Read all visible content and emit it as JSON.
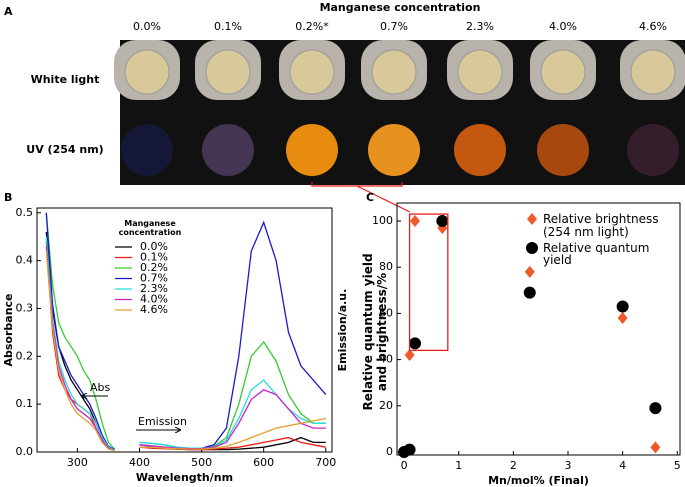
{
  "panel_a": {
    "label": "A",
    "title": "Manganese concentration",
    "concentrations": [
      "0.0%",
      "0.1%",
      "0.2%*",
      "0.7%",
      "2.3%",
      "4.0%",
      "4.6%"
    ],
    "rows": [
      "White light",
      "UV (254 nm)"
    ]
  },
  "chart_data": [
    {
      "type": "line",
      "panel": "B",
      "xlabel": "Wavelength/nm",
      "ylabel": "Absorbance",
      "y2label": "Emission/a.u.",
      "legend_title": "Manganese concentration",
      "annotations": [
        "Abs",
        "Emission"
      ],
      "x": [
        250,
        260,
        270,
        280,
        290,
        300,
        310,
        320,
        330,
        340,
        350,
        360,
        380,
        400,
        420,
        440,
        460,
        480,
        500,
        520,
        540,
        560,
        580,
        600,
        620,
        640,
        660,
        680,
        700
      ],
      "xlim": [
        235,
        710
      ],
      "xticks": [
        300,
        400,
        500,
        600,
        700
      ],
      "ylim": [
        0,
        0.51
      ],
      "yticks": [
        {
          "value": 0,
          "label": "0.0"
        },
        0.1,
        0.2,
        0.3,
        0.4,
        0.5
      ],
      "series": [
        {
          "name": "0.0%",
          "color": "#000000",
          "values": [
            0.46,
            0.3,
            0.22,
            0.18,
            0.15,
            0.13,
            0.11,
            0.09,
            0.06,
            0.03,
            0.01,
            0.005,
            null,
            0.01,
            0.01,
            0.008,
            0.006,
            0.005,
            0.005,
            0.005,
            0.005,
            0.006,
            0.008,
            0.01,
            0.015,
            0.02,
            0.03,
            0.02,
            0.02
          ]
        },
        {
          "name": "0.1%",
          "color": "#e8201a",
          "values": [
            0.44,
            0.25,
            0.16,
            0.13,
            0.11,
            0.1,
            0.09,
            0.08,
            0.05,
            0.02,
            0.008,
            0.004,
            null,
            0.01,
            0.008,
            0.007,
            0.006,
            0.005,
            0.005,
            0.006,
            0.008,
            0.01,
            0.015,
            0.02,
            0.025,
            0.03,
            0.02,
            0.015,
            0.01
          ]
        },
        {
          "name": "0.2%",
          "color": "#33cc33",
          "values": [
            0.5,
            0.35,
            0.27,
            0.24,
            0.22,
            0.2,
            0.17,
            0.15,
            0.11,
            0.06,
            0.02,
            0.006,
            null,
            0.02,
            0.018,
            0.015,
            0.01,
            0.008,
            0.008,
            0.012,
            0.03,
            0.1,
            0.2,
            0.23,
            0.19,
            0.12,
            0.08,
            0.06,
            0.06
          ]
        },
        {
          "name": "0.7%",
          "color": "#1a1acc",
          "values": [
            0.5,
            0.31,
            0.22,
            0.19,
            0.16,
            0.14,
            0.12,
            0.1,
            0.07,
            0.035,
            0.012,
            0.005,
            null,
            0.015,
            0.012,
            0.01,
            0.008,
            0.007,
            0.008,
            0.015,
            0.05,
            0.2,
            0.42,
            0.48,
            0.4,
            0.25,
            0.18,
            0.15,
            0.12
          ]
        },
        {
          "name": "2.3%",
          "color": "#22dddd",
          "values": [
            0.45,
            0.28,
            0.19,
            0.15,
            0.12,
            0.1,
            0.09,
            0.08,
            0.06,
            0.03,
            0.01,
            0.004,
            null,
            0.02,
            0.018,
            0.015,
            0.01,
            0.008,
            0.008,
            0.01,
            0.025,
            0.07,
            0.13,
            0.15,
            0.12,
            0.09,
            0.07,
            0.06,
            0.06
          ]
        },
        {
          "name": "4.0%",
          "color": "#cc22cc",
          "values": [
            0.43,
            0.27,
            0.18,
            0.14,
            0.11,
            0.09,
            0.08,
            0.07,
            0.05,
            0.025,
            0.008,
            0.003,
            null,
            0.015,
            0.013,
            0.01,
            0.008,
            0.007,
            0.007,
            0.01,
            0.02,
            0.06,
            0.11,
            0.13,
            0.12,
            0.09,
            0.06,
            0.05,
            0.05
          ]
        },
        {
          "name": "4.6%",
          "color": "#e0a030",
          "values": [
            0.42,
            0.26,
            0.17,
            0.13,
            0.1,
            0.08,
            0.07,
            0.06,
            0.045,
            0.02,
            0.006,
            0.003,
            null,
            0.01,
            0.01,
            0.008,
            0.007,
            0.006,
            0.006,
            0.008,
            0.012,
            0.02,
            0.03,
            0.04,
            0.05,
            0.055,
            0.06,
            0.065,
            0.07
          ]
        }
      ]
    },
    {
      "type": "scatter",
      "panel": "C",
      "xlabel": "Mn/mol% (Final)",
      "ylabel": "Relative quantum yield and brightness/%",
      "x": [
        0,
        0.1,
        0.2,
        0.7,
        2.3,
        4.0,
        4.6
      ],
      "xlim": [
        -0.13,
        5.05
      ],
      "xticks": [
        0,
        1,
        2,
        3,
        4,
        5
      ],
      "ylim": [
        -1.3,
        107.8
      ],
      "yticks": [
        0,
        20,
        40,
        60,
        80,
        100
      ],
      "series": [
        {
          "name": "Relative brightness (254 nm light)",
          "color": "#f05a28",
          "marker": "diamond",
          "values": [
            0,
            42,
            100,
            97,
            78,
            58,
            2
          ]
        },
        {
          "name": "Relative quantum yield",
          "color": "#000000",
          "marker": "circle",
          "values": [
            0,
            1,
            47,
            100,
            69,
            63,
            19
          ]
        }
      ]
    }
  ]
}
